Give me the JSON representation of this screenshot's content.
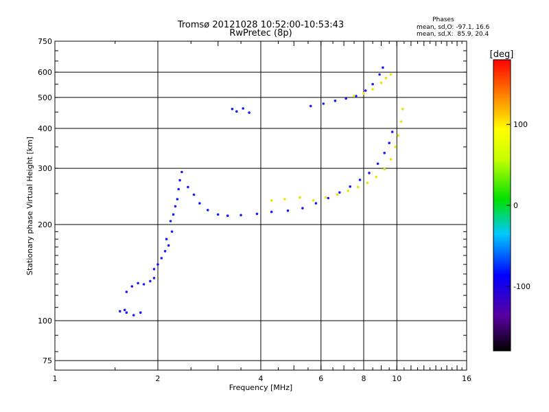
{
  "chart_data": {
    "type": "scatter",
    "title": "Tromsø 20121028 10:52:00-10:53:43",
    "subtitle": "RwPretec (8p)",
    "xlabel": "Frequency [MHz]",
    "ylabel": "Stationary phase Virtual Height [km]",
    "x_scale": "log",
    "y_scale": "log",
    "xlim": [
      1,
      16
    ],
    "ylim": [
      70,
      750
    ],
    "x_ticks": [
      1,
      2,
      4,
      6,
      8,
      10,
      16
    ],
    "x_tick_labels": [
      "1",
      "2",
      "4",
      "6",
      "8",
      "10",
      "16"
    ],
    "y_ticks": [
      75,
      100,
      200,
      300,
      400,
      500,
      600,
      750
    ],
    "y_tick_labels": [
      "75",
      "100",
      "200",
      "300",
      "400",
      "500",
      "600",
      "750"
    ],
    "grid": true,
    "phase_info": {
      "title": "Phases",
      "line_o": "mean, sd,O: -97.1, 16.6",
      "line_x": "mean, sd,X:  85.9, 20.4"
    },
    "colorbar": {
      "label": "[deg]",
      "range": [
        -180,
        180
      ],
      "ticks": [
        100,
        0,
        -100
      ],
      "tick_labels": [
        "100",
        "0",
        "-100"
      ],
      "colormap": "rainbow (black-purple-blue-cyan-green-yellow-orange-red)"
    },
    "series": [
      {
        "mode": "O",
        "color": "#1a1aff",
        "phase_mean": -97.1,
        "points": [
          [
            1.55,
            107
          ],
          [
            1.62,
            106
          ],
          [
            1.7,
            104
          ],
          [
            1.78,
            106
          ],
          [
            1.6,
            108
          ],
          [
            1.62,
            123
          ],
          [
            1.68,
            128
          ],
          [
            1.75,
            131
          ],
          [
            1.82,
            130
          ],
          [
            1.9,
            133
          ],
          [
            1.95,
            136
          ],
          [
            1.95,
            145
          ],
          [
            2.0,
            150
          ],
          [
            2.05,
            157
          ],
          [
            2.1,
            165
          ],
          [
            2.15,
            172
          ],
          [
            2.12,
            180
          ],
          [
            2.2,
            190
          ],
          [
            2.18,
            205
          ],
          [
            2.22,
            215
          ],
          [
            2.25,
            228
          ],
          [
            2.28,
            240
          ],
          [
            2.3,
            258
          ],
          [
            2.32,
            275
          ],
          [
            2.35,
            292
          ],
          [
            2.45,
            262
          ],
          [
            2.55,
            248
          ],
          [
            2.65,
            233
          ],
          [
            2.8,
            222
          ],
          [
            3.0,
            215
          ],
          [
            3.2,
            213
          ],
          [
            3.5,
            214
          ],
          [
            3.9,
            216
          ],
          [
            4.3,
            219
          ],
          [
            4.8,
            221
          ],
          [
            5.3,
            225
          ],
          [
            5.8,
            233
          ],
          [
            6.3,
            242
          ],
          [
            6.8,
            252
          ],
          [
            7.3,
            263
          ],
          [
            7.8,
            276
          ],
          [
            8.3,
            290
          ],
          [
            8.8,
            310
          ],
          [
            9.2,
            335
          ],
          [
            9.5,
            360
          ],
          [
            9.7,
            390
          ],
          [
            3.3,
            460
          ],
          [
            3.4,
            452
          ],
          [
            3.55,
            462
          ],
          [
            3.7,
            448
          ],
          [
            5.6,
            470
          ],
          [
            6.1,
            478
          ],
          [
            6.6,
            488
          ],
          [
            7.1,
            496
          ],
          [
            7.6,
            505
          ],
          [
            8.1,
            525
          ],
          [
            8.5,
            550
          ],
          [
            8.9,
            590
          ],
          [
            9.1,
            620
          ]
        ]
      },
      {
        "mode": "X",
        "color": "#e6e600",
        "phase_mean": 85.9,
        "points": [
          [
            4.3,
            238
          ],
          [
            4.7,
            240
          ],
          [
            5.2,
            243
          ],
          [
            5.7,
            238
          ],
          [
            6.2,
            243
          ],
          [
            6.7,
            248
          ],
          [
            7.2,
            255
          ],
          [
            7.7,
            262
          ],
          [
            8.2,
            270
          ],
          [
            8.7,
            282
          ],
          [
            9.2,
            298
          ],
          [
            9.6,
            320
          ],
          [
            9.9,
            350
          ],
          [
            10.1,
            380
          ],
          [
            10.3,
            420
          ],
          [
            10.4,
            460
          ],
          [
            7.5,
            505
          ],
          [
            8.0,
            515
          ],
          [
            8.5,
            530
          ],
          [
            9.0,
            555
          ],
          [
            9.3,
            575
          ],
          [
            9.6,
            590
          ]
        ]
      }
    ]
  }
}
